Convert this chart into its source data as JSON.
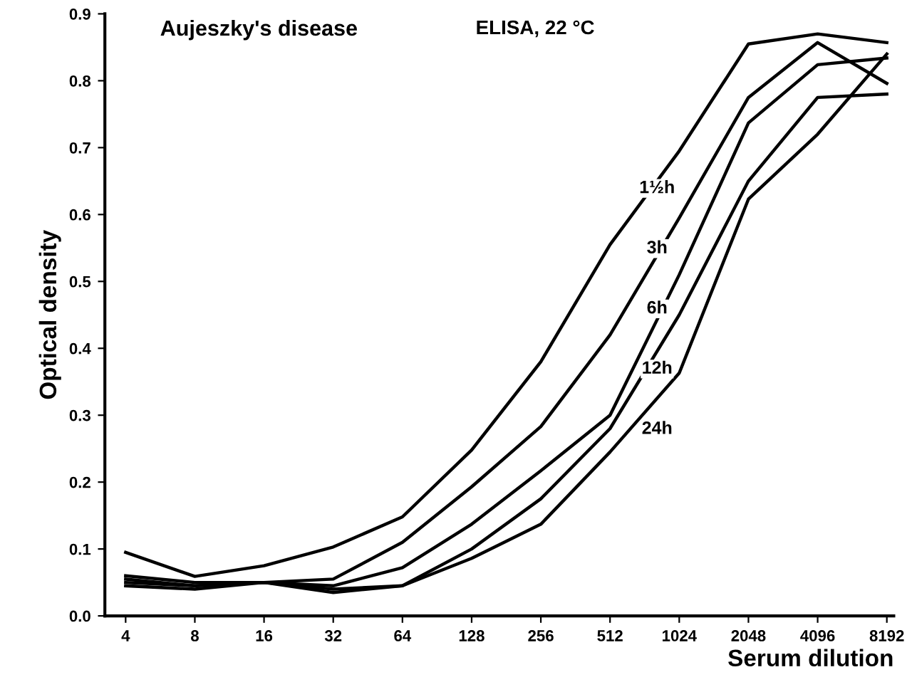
{
  "chart_data": {
    "type": "line",
    "title": "Aujeszky's disease",
    "subtitle": "ELISA, 22 °C",
    "xlabel": "Serum dilution",
    "ylabel": "Optical density",
    "categories": [
      "4",
      "8",
      "16",
      "32",
      "64",
      "128",
      "256",
      "512",
      "1024",
      "2048",
      "4096",
      "8192"
    ],
    "series": [
      {
        "color": "#000000",
        "values": [
          0.095,
          0.059,
          0.075,
          0.103,
          0.148,
          0.248,
          0.38,
          0.555,
          0.695,
          0.855,
          0.87,
          0.857
        ]
      },
      {
        "color": "#000000",
        "values": [
          0.06,
          0.05,
          0.05,
          0.055,
          0.11,
          0.193,
          0.283,
          0.42,
          0.595,
          0.775,
          0.857,
          0.796
        ]
      },
      {
        "color": "#000000",
        "values": [
          0.055,
          0.045,
          0.05,
          0.045,
          0.072,
          0.137,
          0.217,
          0.3,
          0.51,
          0.737,
          0.824,
          0.834
        ]
      },
      {
        "color": "#000000",
        "values": [
          0.05,
          0.045,
          0.05,
          0.04,
          0.045,
          0.1,
          0.175,
          0.28,
          0.45,
          0.65,
          0.775,
          0.78
        ]
      },
      {
        "color": "#000000",
        "values": [
          0.045,
          0.04,
          0.05,
          0.035,
          0.045,
          0.086,
          0.137,
          0.245,
          0.363,
          0.623,
          0.72,
          0.84
        ]
      }
    ],
    "annotations": [
      "1½h",
      "3h",
      "6h",
      "12h",
      "24h"
    ],
    "ylim": [
      0,
      0.9
    ],
    "yticks": [
      {
        "value": 0,
        "label": "0.0"
      },
      {
        "value": 0.1,
        "label": "0.1"
      },
      {
        "value": 0.2,
        "label": "0.2"
      },
      {
        "value": 0.3,
        "label": "0.3"
      },
      {
        "value": 0.4,
        "label": "0.4"
      },
      {
        "value": 0.5,
        "label": "0.5"
      },
      {
        "value": 0.6,
        "label": "0.6"
      },
      {
        "value": 0.7,
        "label": "0.7"
      },
      {
        "value": 0.8,
        "label": "0.8"
      },
      {
        "value": 0.9,
        "label": "0.9"
      }
    ],
    "grid": false,
    "marker": "none",
    "line_style": "solid"
  }
}
